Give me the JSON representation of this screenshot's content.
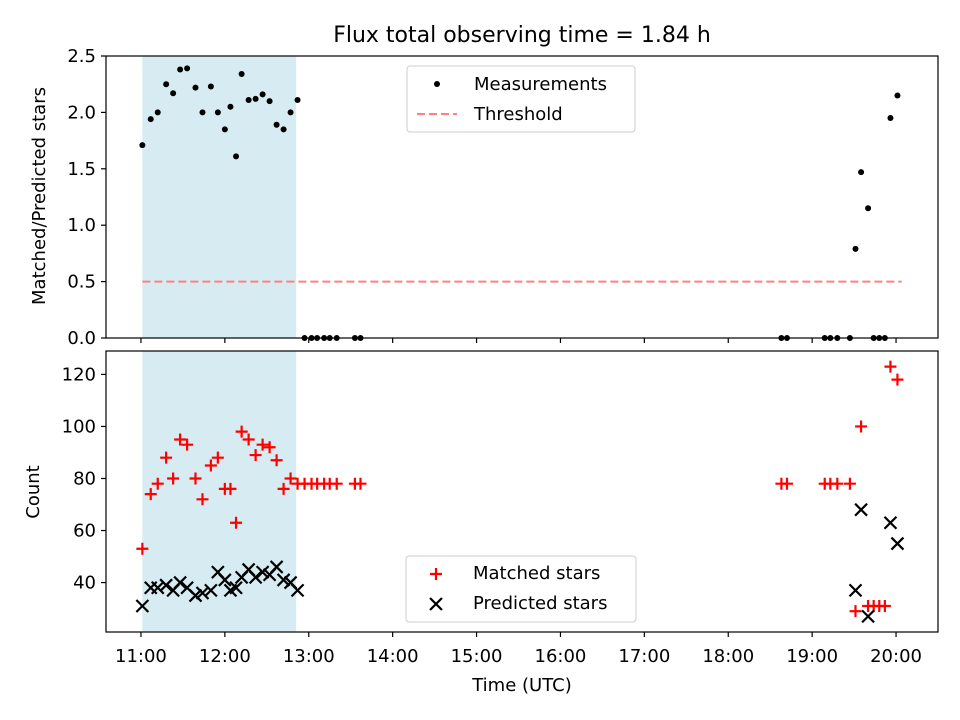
{
  "colors": {
    "background": "#ffffff",
    "shade": "#add8e6",
    "measurement": "#000000",
    "threshold": "#ff8080",
    "matched": "#ff0000",
    "predicted": "#000000"
  },
  "chart_data": [
    {
      "type": "scatter",
      "title": "Flux total observing time = 1.84 h",
      "xlabel": "",
      "ylabel": "Matched/Predicted stars",
      "xlim": [
        "10:35",
        "20:30"
      ],
      "ylim": [
        0,
        2.5
      ],
      "yticks": [
        "0.0",
        "0.5",
        "1.0",
        "1.5",
        "2.0",
        "2.5"
      ],
      "shaded_region": {
        "x": [
          "11:01",
          "12:51"
        ],
        "color": "lightblue"
      },
      "legend": {
        "placement": "top-center",
        "entries": [
          "Measurements",
          "Threshold"
        ]
      },
      "series": [
        {
          "name": "Measurements",
          "marker": "dot",
          "points": [
            [
              "11:01",
              1.71
            ],
            [
              "11:07",
              1.94
            ],
            [
              "11:12",
              2.0
            ],
            [
              "11:18",
              2.25
            ],
            [
              "11:23",
              2.17
            ],
            [
              "11:28",
              2.38
            ],
            [
              "11:33",
              2.39
            ],
            [
              "11:39",
              2.22
            ],
            [
              "11:44",
              2.0
            ],
            [
              "11:50",
              2.23
            ],
            [
              "11:55",
              2.0
            ],
            [
              "12:00",
              1.85
            ],
            [
              "12:04",
              2.05
            ],
            [
              "12:08",
              1.61
            ],
            [
              "12:12",
              2.34
            ],
            [
              "12:17",
              2.11
            ],
            [
              "12:22",
              2.12
            ],
            [
              "12:27",
              2.16
            ],
            [
              "12:32",
              2.1
            ],
            [
              "12:37",
              1.89
            ],
            [
              "12:42",
              1.85
            ],
            [
              "12:47",
              2.0
            ],
            [
              "12:52",
              2.11
            ],
            [
              "12:57",
              0
            ],
            [
              "13:02",
              0
            ],
            [
              "13:06",
              0
            ],
            [
              "13:11",
              0
            ],
            [
              "13:15",
              0
            ],
            [
              "13:20",
              0
            ],
            [
              "13:33",
              0
            ],
            [
              "13:37",
              0
            ],
            [
              "18:38",
              0
            ],
            [
              "18:42",
              0
            ],
            [
              "19:09",
              0
            ],
            [
              "19:13",
              0
            ],
            [
              "19:18",
              0
            ],
            [
              "19:27",
              0
            ],
            [
              "19:31",
              0.79
            ],
            [
              "19:35",
              1.47
            ],
            [
              "19:40",
              1.15
            ],
            [
              "19:44",
              0
            ],
            [
              "19:48",
              0
            ],
            [
              "19:52",
              0
            ],
            [
              "19:56",
              1.95
            ],
            [
              "20:01",
              2.15
            ]
          ]
        },
        {
          "name": "Threshold",
          "style": "dashed",
          "points": [
            [
              "11:01",
              0.5
            ],
            [
              "20:04",
              0.5
            ]
          ]
        }
      ]
    },
    {
      "type": "scatter",
      "title": "",
      "xlabel": "Time (UTC)",
      "ylabel": "Count",
      "xlim": [
        "10:35",
        "20:30"
      ],
      "ylim": [
        21,
        129
      ],
      "yticks": [
        "40",
        "60",
        "80",
        "100",
        "120"
      ],
      "xticks": [
        "11:00",
        "12:00",
        "13:00",
        "14:00",
        "15:00",
        "16:00",
        "17:00",
        "18:00",
        "19:00",
        "20:00"
      ],
      "shaded_region": {
        "x": [
          "11:01",
          "12:51"
        ],
        "color": "lightblue"
      },
      "legend": {
        "placement": "bottom-center",
        "entries": [
          "Matched stars",
          "Predicted stars"
        ]
      },
      "series": [
        {
          "name": "Matched stars",
          "marker": "plus",
          "points": [
            [
              "11:01",
              53
            ],
            [
              "11:07",
              74
            ],
            [
              "11:12",
              78
            ],
            [
              "11:18",
              88
            ],
            [
              "11:23",
              80
            ],
            [
              "11:28",
              95
            ],
            [
              "11:33",
              93
            ],
            [
              "11:39",
              80
            ],
            [
              "11:44",
              72
            ],
            [
              "11:50",
              85
            ],
            [
              "11:55",
              88
            ],
            [
              "12:00",
              76
            ],
            [
              "12:04",
              76
            ],
            [
              "12:08",
              63
            ],
            [
              "12:12",
              98
            ],
            [
              "12:17",
              95
            ],
            [
              "12:22",
              89
            ],
            [
              "12:27",
              93
            ],
            [
              "12:32",
              92
            ],
            [
              "12:37",
              87
            ],
            [
              "12:42",
              76
            ],
            [
              "12:47",
              80
            ],
            [
              "12:52",
              78
            ],
            [
              "12:57",
              78
            ],
            [
              "13:02",
              78
            ],
            [
              "13:06",
              78
            ],
            [
              "13:11",
              78
            ],
            [
              "13:15",
              78
            ],
            [
              "13:20",
              78
            ],
            [
              "13:33",
              78
            ],
            [
              "13:37",
              78
            ],
            [
              "18:38",
              78
            ],
            [
              "18:42",
              78
            ],
            [
              "19:09",
              78
            ],
            [
              "19:13",
              78
            ],
            [
              "19:18",
              78
            ],
            [
              "19:27",
              78
            ],
            [
              "19:31",
              29
            ],
            [
              "19:35",
              100
            ],
            [
              "19:40",
              31
            ],
            [
              "19:44",
              31
            ],
            [
              "19:48",
              31
            ],
            [
              "19:52",
              31
            ],
            [
              "19:56",
              123
            ],
            [
              "20:01",
              118
            ]
          ]
        },
        {
          "name": "Predicted stars",
          "marker": "x",
          "points": [
            [
              "11:01",
              31
            ],
            [
              "11:07",
              38
            ],
            [
              "11:12",
              38
            ],
            [
              "11:18",
              39
            ],
            [
              "11:23",
              37
            ],
            [
              "11:28",
              40
            ],
            [
              "11:33",
              38
            ],
            [
              "11:39",
              35
            ],
            [
              "11:44",
              36
            ],
            [
              "11:50",
              37
            ],
            [
              "11:55",
              44
            ],
            [
              "12:00",
              41
            ],
            [
              "12:04",
              37
            ],
            [
              "12:08",
              38
            ],
            [
              "12:12",
              42
            ],
            [
              "12:17",
              45
            ],
            [
              "12:22",
              42
            ],
            [
              "12:27",
              44
            ],
            [
              "12:32",
              43
            ],
            [
              "12:37",
              46
            ],
            [
              "12:42",
              41
            ],
            [
              "12:47",
              40
            ],
            [
              "12:52",
              37
            ],
            [
              "19:31",
              37
            ],
            [
              "19:35",
              68
            ],
            [
              "19:40",
              27
            ],
            [
              "19:56",
              63
            ],
            [
              "20:01",
              55
            ]
          ]
        }
      ]
    }
  ]
}
